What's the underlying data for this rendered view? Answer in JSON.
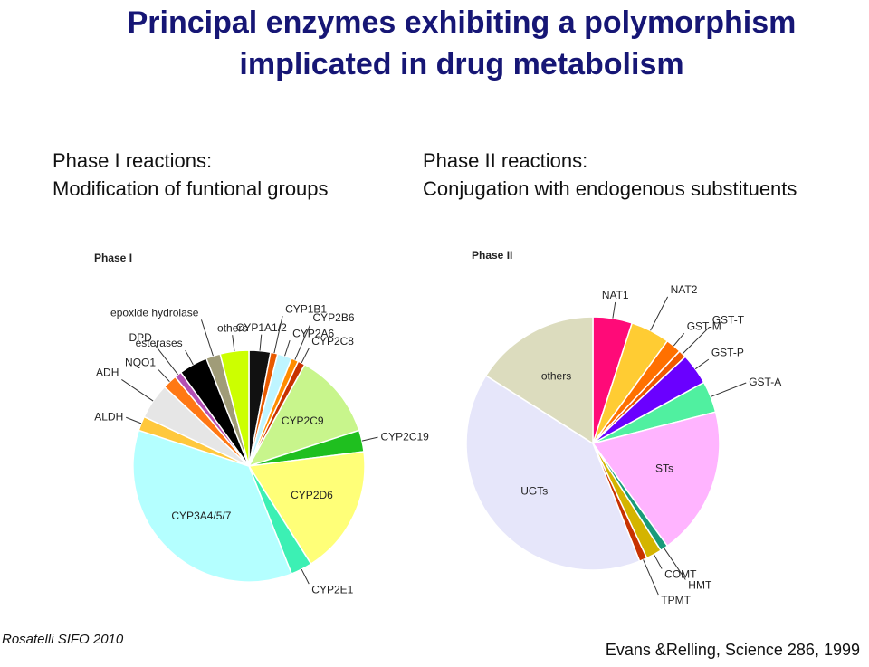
{
  "title": "Principal enzymes exhibiting a polymorphism implicated in drug metabolism",
  "columns": [
    {
      "heading": "Phase I reactions:",
      "subheading": "Modification of funtional groups"
    },
    {
      "heading": "Phase II reactions:",
      "subheading": "Conjugation with endogenous substituents"
    }
  ],
  "credit_left": "Rosatelli SIFO 2010",
  "credit_right": "Evans &Relling, Science 286, 1999",
  "chart_data": [
    {
      "type": "pie",
      "title": "Phase I",
      "categories": [
        "CYP1A1/2",
        "CYP1B1",
        "CYP2A6",
        "CYP2B6",
        "CYP2C8",
        "CYP2C9",
        "CYP2C19",
        "CYP2D6",
        "CYP2E1",
        "CYP3A4/5/7",
        "ALDH",
        "ADH",
        "NQO1",
        "DPD",
        "esterases",
        "epoxide hydrolase",
        "others"
      ],
      "values": [
        3,
        1,
        2,
        1,
        1,
        12,
        3,
        18,
        3,
        36,
        2,
        5,
        2,
        1,
        4,
        2,
        4
      ],
      "colors": [
        "#111111",
        "#e85a00",
        "#bff5ff",
        "#ff8c00",
        "#c83200",
        "#c8f58c",
        "#1fbf1f",
        "#ffff78",
        "#3cf0b4",
        "#b4ffff",
        "#ffc83c",
        "#e6e6e6",
        "#ff7814",
        "#b450b4",
        "#000000",
        "#a09c78",
        "#ccff00"
      ]
    },
    {
      "type": "pie",
      "title": "Phase II",
      "categories": [
        "NAT1",
        "NAT2",
        "GST-M",
        "GST-T",
        "GST-P",
        "GST-A",
        "STs",
        "HMT",
        "COMT",
        "TPMT",
        "UGTs",
        "others"
      ],
      "values": [
        5,
        5,
        2,
        1,
        4,
        4,
        19,
        1,
        2,
        1,
        40,
        16
      ],
      "colors": [
        "#ff0a78",
        "#ffcc33",
        "#ff7000",
        "#f05a00",
        "#6a00ff",
        "#50f0a0",
        "#ffb4ff",
        "#1a9a7a",
        "#d4b400",
        "#c83200",
        "#e6e6fa",
        "#dcdcbe"
      ]
    }
  ]
}
